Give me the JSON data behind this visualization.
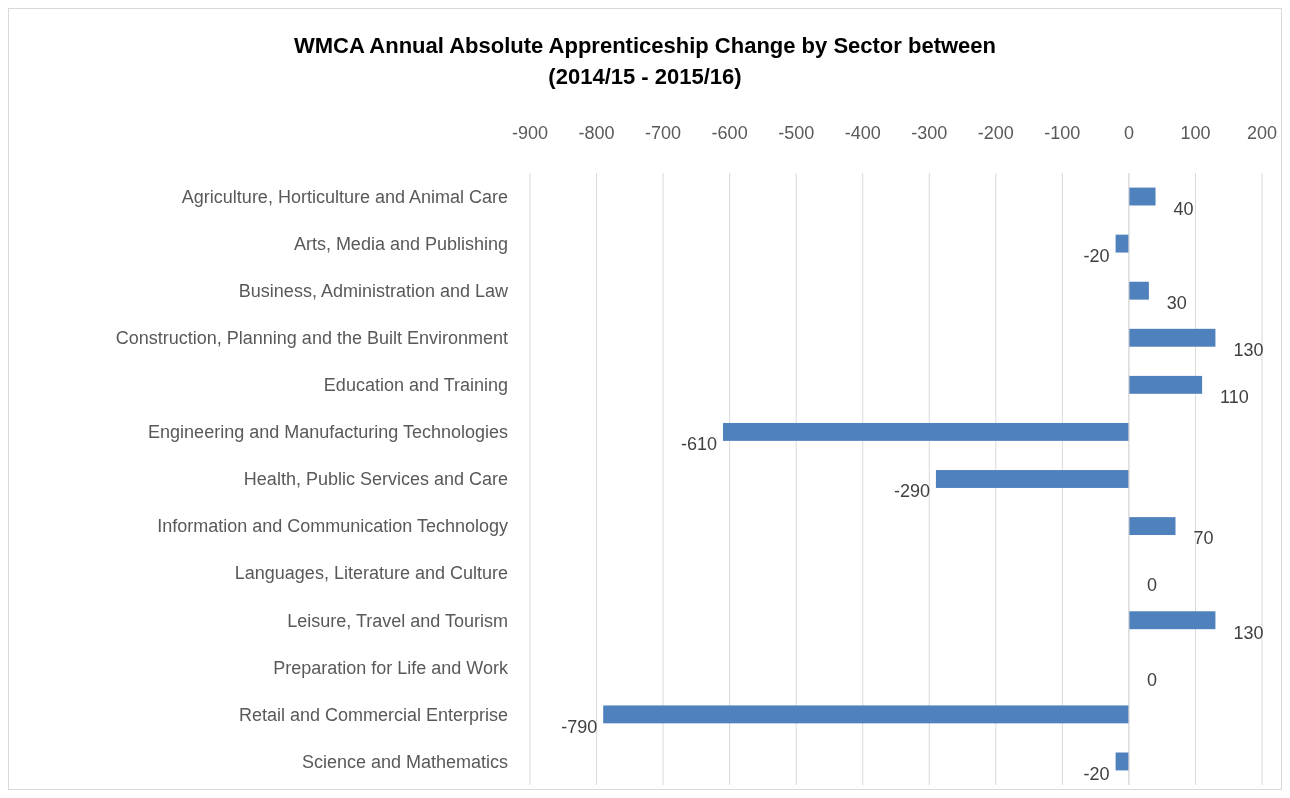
{
  "chart_data": {
    "type": "bar",
    "orientation": "horizontal",
    "title": "WMCA Annual Absolute Apprenticeship Change by Sector between\n(2014/15 - 2015/16)",
    "categories": [
      "Agriculture, Horticulture and Animal Care",
      "Arts, Media and Publishing",
      "Business, Administration and Law",
      "Construction, Planning and the Built Environment",
      "Education and Training",
      "Engineering and Manufacturing Technologies",
      "Health, Public Services and Care",
      "Information and Communication Technology",
      "Languages, Literature and Culture",
      "Leisure, Travel and Tourism",
      "Preparation for Life and Work",
      "Retail and Commercial Enterprise",
      "Science and Mathematics"
    ],
    "values": [
      40,
      -20,
      30,
      130,
      110,
      -610,
      -290,
      70,
      0,
      130,
      0,
      -790,
      -20
    ],
    "color": "#4f81bd",
    "xlim": [
      -900,
      200
    ],
    "xticks": [
      -900,
      -800,
      -700,
      -600,
      -500,
      -400,
      -300,
      -200,
      -100,
      0,
      100,
      200
    ],
    "grid": "x",
    "data_labels": true
  }
}
